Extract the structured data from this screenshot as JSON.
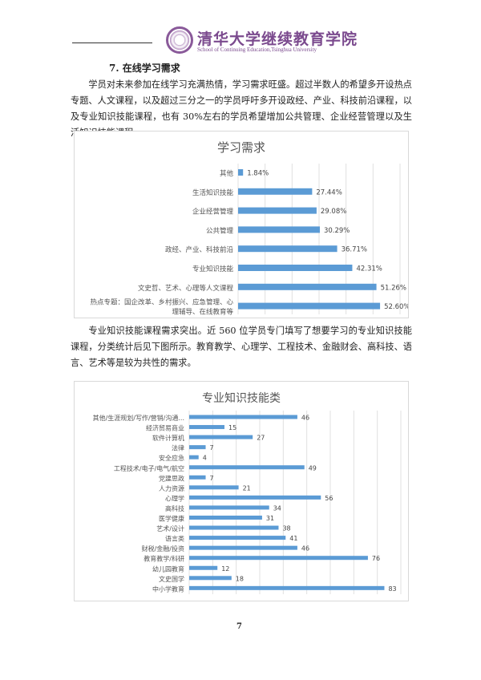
{
  "header": {
    "brand_cn": "清华大学继续教育学院",
    "brand_en": "School of Continuing Education,Tsinghua University"
  },
  "section": {
    "heading": "7.  在线学习需求",
    "para1": "学员对未来参加在线学习充满热情，学习需求旺盛。超过半数人的希望多开设热点专题、人文课程，以及超过三分之一的学员呼吁多开设政经、产业、科技前沿课程，以及专业知识技能课程，也有 30%左右的学员希望增加公共管理、企业经营管理以及生活知识技能课程。",
    "para2": "专业知识技能课程需求突出。近 560 位学员专门填写了想要学习的专业知识技能课程，分类统计后见下图所示。教育教学、心理学、工程技术、金融财会、高科技、语言、艺术等是较为共性的需求。"
  },
  "page_number": "7",
  "chart_data": [
    {
      "type": "bar",
      "orientation": "horizontal",
      "title": "学习需求",
      "bar_color": "#5b9bd5",
      "xlim": [
        0,
        60
      ],
      "grid": true,
      "unit": "%",
      "categories": [
        "其他",
        "生活知识技能",
        "企业经营管理",
        "公共管理",
        "政经、产业、科技前沿",
        "专业知识技能",
        "文史哲、艺术、心理等人文课程",
        "热点专题：国企改革、乡村振兴、应急管理、心|理辅导、在线教育等"
      ],
      "values": [
        1.84,
        27.44,
        29.08,
        30.29,
        36.71,
        42.31,
        51.26,
        52.6
      ],
      "labels": [
        "1.84%",
        "27.44%",
        "29.08%",
        "30.29%",
        "36.71%",
        "42.31%",
        "51.26%",
        "52.60%"
      ]
    },
    {
      "type": "bar",
      "orientation": "horizontal",
      "title": "专业知识技能类",
      "bar_color": "#5b9bd5",
      "xlim": [
        0,
        90
      ],
      "grid": true,
      "categories": [
        "其他/生涯规划/写作/营销/沟通...",
        "经济贸易商业",
        "软件计算机",
        "法律",
        "安全应急",
        "工程技术/电子/电气/航空",
        "党建思政",
        "人力资源",
        "心理学",
        "高科技",
        "医学健康",
        "艺术/设计",
        "语言类",
        "财税/金融/投资",
        "教育教学/科研",
        "幼儿园教育",
        "文史国学",
        "中小学教育"
      ],
      "values": [
        46,
        15,
        27,
        7,
        4,
        49,
        7,
        21,
        56,
        34,
        31,
        38,
        41,
        46,
        76,
        12,
        18,
        83
      ]
    }
  ]
}
